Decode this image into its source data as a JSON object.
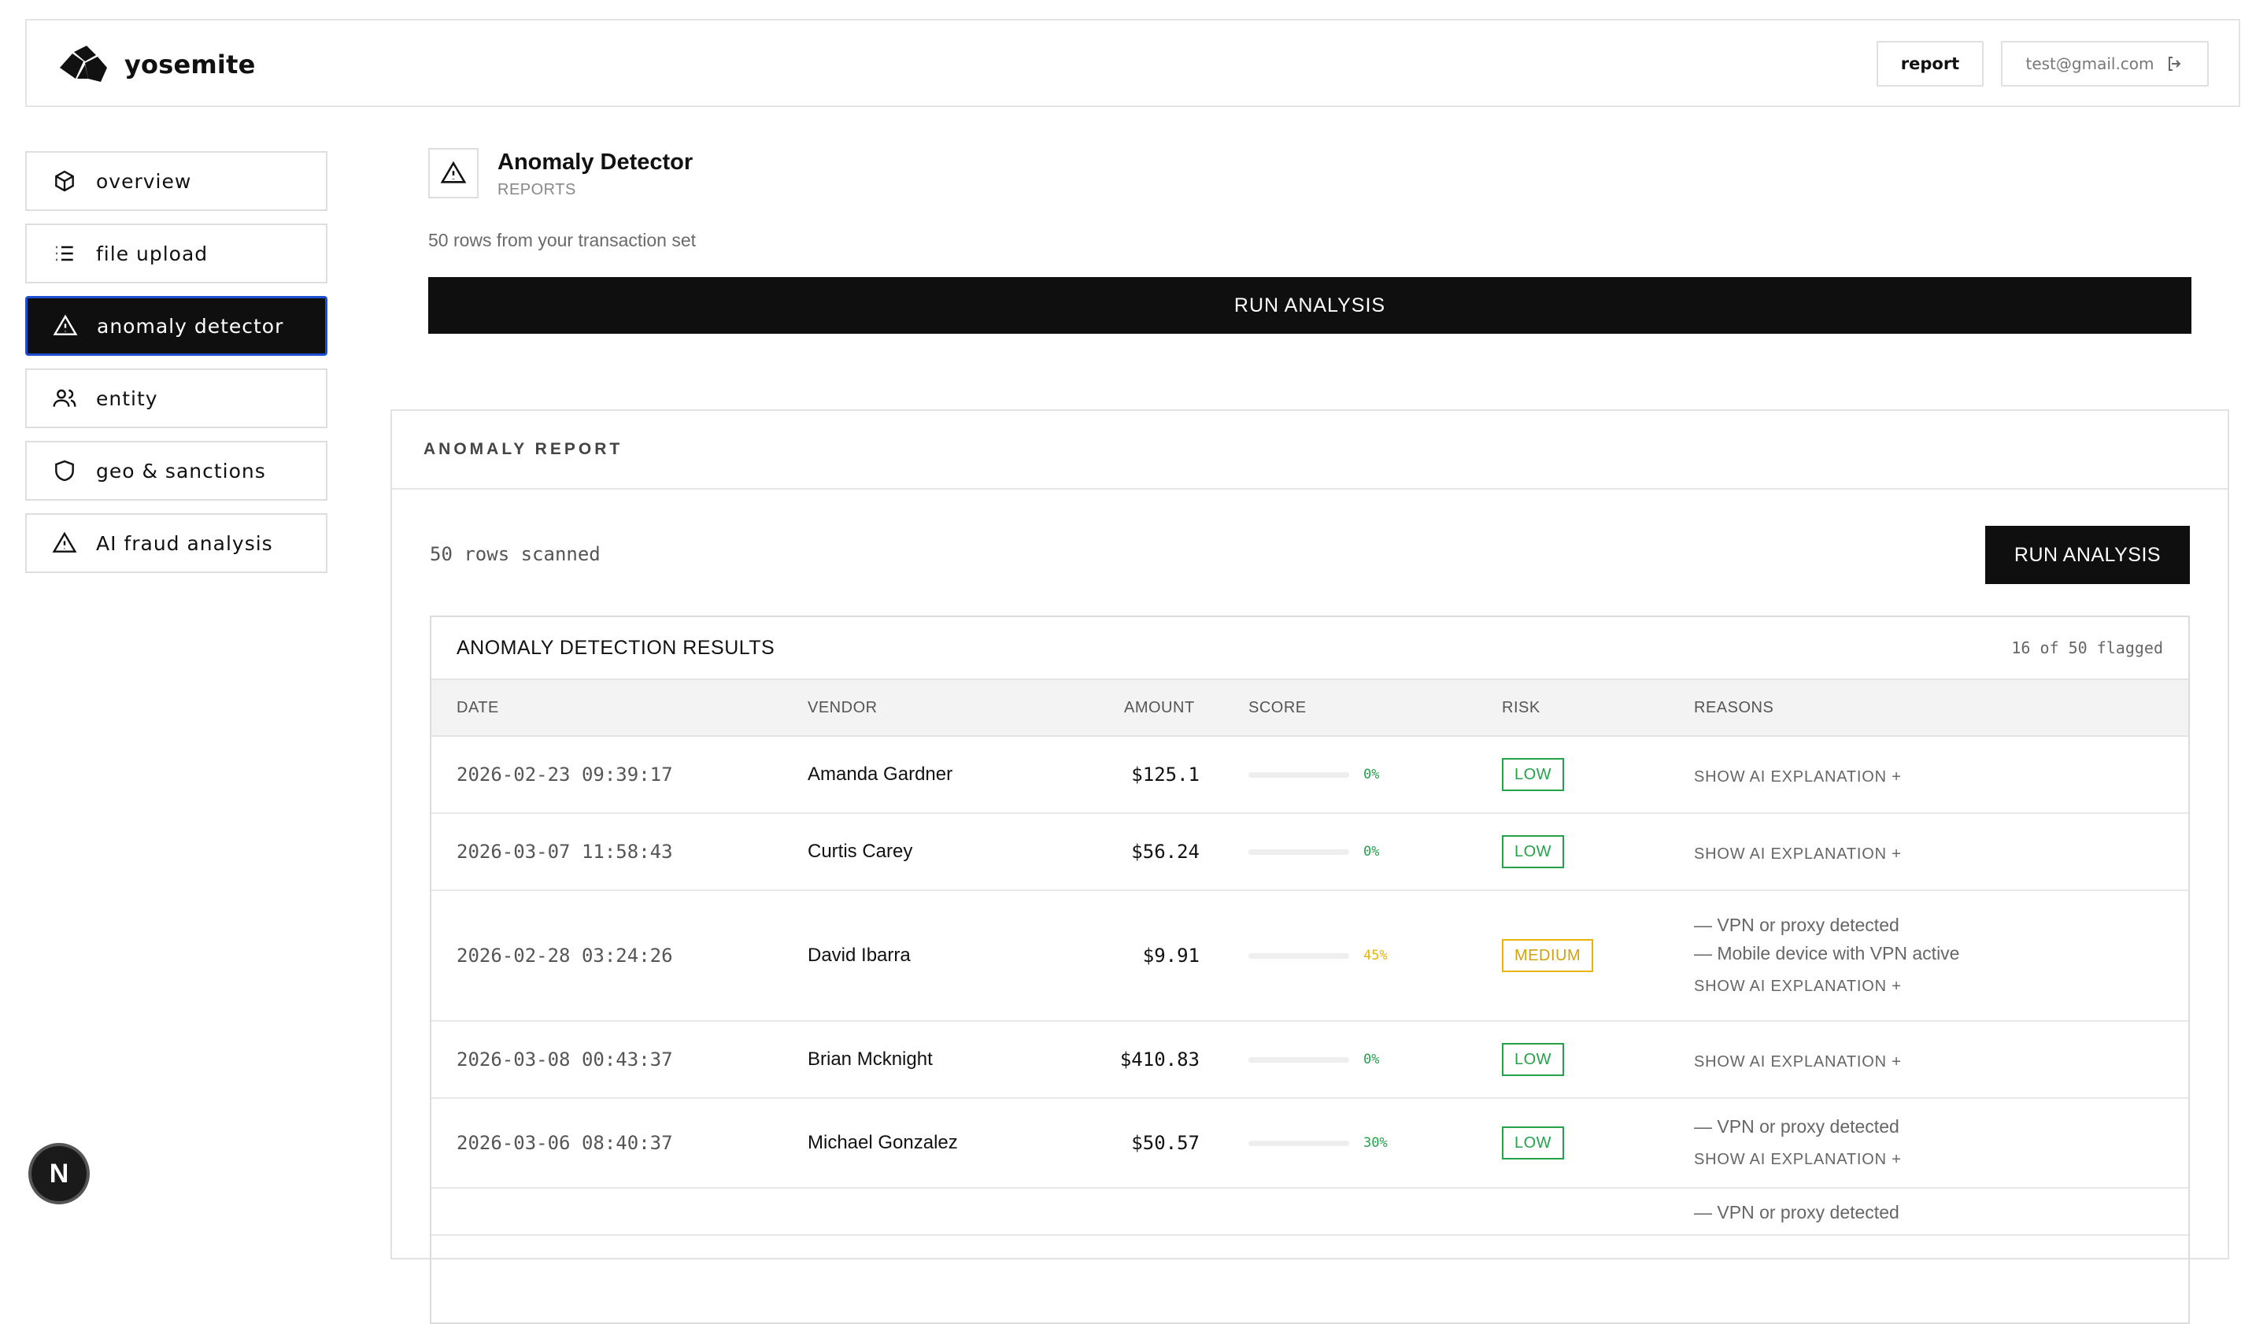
{
  "app": {
    "name": "yosemite"
  },
  "header": {
    "report_label": "report",
    "user_email": "test@gmail.com"
  },
  "sidebar": {
    "items": [
      {
        "label": "overview",
        "icon": "cube-icon"
      },
      {
        "label": "file upload",
        "icon": "list-icon"
      },
      {
        "label": "anomaly detector",
        "icon": "warning-icon",
        "active": true
      },
      {
        "label": "entity",
        "icon": "users-icon"
      },
      {
        "label": "geo & sanctions",
        "icon": "shield-icon"
      },
      {
        "label": "AI fraud analysis",
        "icon": "warning-icon"
      }
    ]
  },
  "page": {
    "title": "Anomaly Detector",
    "subtitle": "REPORTS",
    "rows_note": "50 rows from your transaction set",
    "run_label": "RUN ANALYSIS"
  },
  "report": {
    "heading": "ANOMALY REPORT",
    "scanned": "50 rows scanned",
    "run_label": "RUN ANALYSIS",
    "results_title": "ANOMALY DETECTION RESULTS",
    "flagged": "16 of 50 flagged",
    "columns": [
      "DATE",
      "VENDOR",
      "AMOUNT",
      "SCORE",
      "RISK",
      "REASONS"
    ],
    "explain_label": "SHOW AI EXPLANATION +",
    "rows": [
      {
        "date": "2026-02-23 09:39:17",
        "vendor": "Amanda Gardner",
        "amount": "$125.1",
        "score": "0%",
        "risk": "LOW",
        "reasons": []
      },
      {
        "date": "2026-03-07 11:58:43",
        "vendor": "Curtis Carey",
        "amount": "$56.24",
        "score": "0%",
        "risk": "LOW",
        "reasons": []
      },
      {
        "date": "2026-02-28 03:24:26",
        "vendor": "David Ibarra",
        "amount": "$9.91",
        "score": "45%",
        "risk": "MEDIUM",
        "reasons": [
          "— VPN or proxy detected",
          "— Mobile device with VPN active"
        ]
      },
      {
        "date": "2026-03-08 00:43:37",
        "vendor": "Brian Mcknight",
        "amount": "$410.83",
        "score": "0%",
        "risk": "LOW",
        "reasons": []
      },
      {
        "date": "2026-03-06 08:40:37",
        "vendor": "Michael Gonzalez",
        "amount": "$50.57",
        "score": "30%",
        "risk": "LOW",
        "reasons": [
          "— VPN or proxy detected"
        ]
      },
      {
        "date": "",
        "vendor": "",
        "amount": "",
        "score": "",
        "risk": "",
        "reasons": [
          "— VPN or proxy detected"
        ]
      }
    ]
  },
  "colors": {
    "low": "#22a34a",
    "medium": "#eab308",
    "active_border": "#1f4fd1",
    "accent": "#0f0f0f"
  },
  "fab_label": "N"
}
